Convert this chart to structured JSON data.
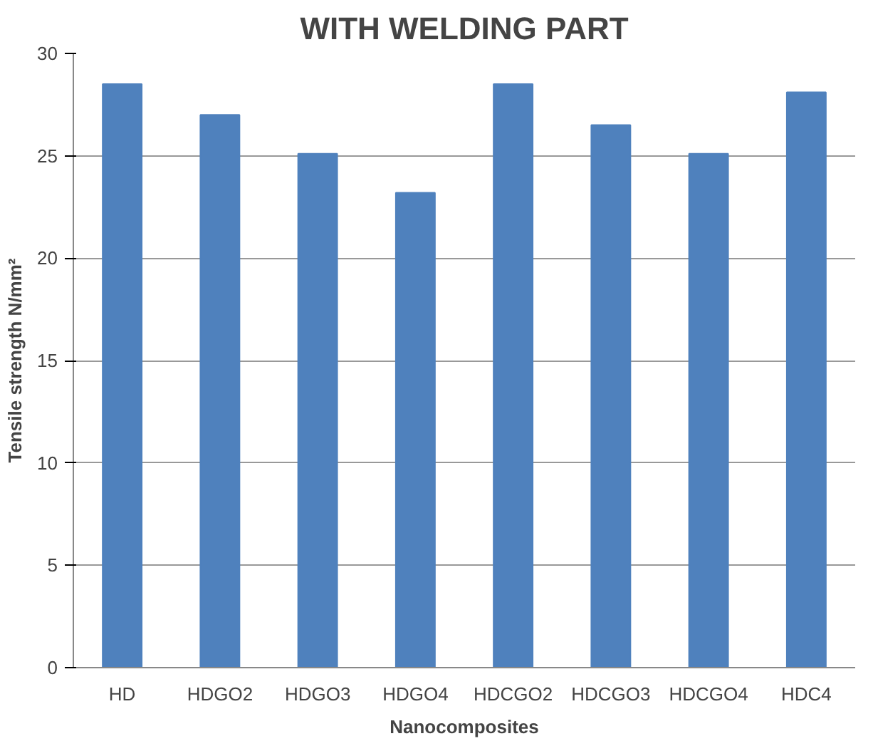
{
  "chart_data": {
    "type": "bar",
    "title": "WITH WELDING PART",
    "xlabel": "Nanocomposites",
    "ylabel": "Tensile strength N/mm²",
    "categories": [
      "HD",
      "HDGO2",
      "HDGO3",
      "HDGO4",
      "HDCGO2",
      "HDCGO3",
      "HDCGO4",
      "HDC4"
    ],
    "values": [
      28.5,
      27.0,
      25.1,
      23.2,
      28.5,
      26.5,
      25.1,
      28.1
    ],
    "color": "#4f81bd",
    "ylim": [
      0,
      30
    ],
    "yticks": [
      0,
      5,
      10,
      15,
      20,
      25,
      30
    ],
    "grid": "y"
  }
}
